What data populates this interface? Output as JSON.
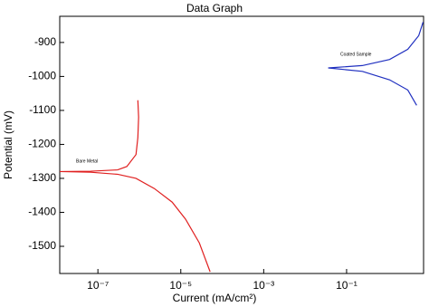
{
  "chart_data": {
    "type": "line",
    "title": "Data Graph",
    "x_label": "Current (mA/cm²)",
    "y_label": "Potential (mV)",
    "xscale": "log",
    "grid": false,
    "xlim": [
      1.2e-08,
      7.2
    ],
    "ylim": [
      -1580,
      -823
    ],
    "xticks": [
      {
        "value": 1e-07,
        "label": "10⁻⁷"
      },
      {
        "value": 1e-05,
        "label": "10⁻⁵"
      },
      {
        "value": 0.001,
        "label": "10⁻³"
      },
      {
        "value": 0.1,
        "label": "10⁻¹"
      }
    ],
    "yticks": [
      -900,
      -1000,
      -1100,
      -1200,
      -1300,
      -1400,
      -1500
    ],
    "series": [
      {
        "name": "Bare Metal",
        "color": "#e02020",
        "x": [
          9.2e-07,
          9.6e-07,
          9.2e-07,
          8.3e-07,
          5e-07,
          3e-07,
          6.7e-08,
          1.2e-08,
          6.7e-08,
          3e-07,
          8.3e-07,
          2.3e-06,
          6.2e-06,
          1.3e-05,
          2.8e-05,
          5.1e-05
        ],
        "values": [
          -1070,
          -1120,
          -1180,
          -1230,
          -1265,
          -1275,
          -1279,
          -1280,
          -1282,
          -1288,
          -1300,
          -1330,
          -1370,
          -1420,
          -1490,
          -1575
        ]
      },
      {
        "name": "Coated Sample",
        "color": "#2030c0",
        "x": [
          7.0,
          5.5,
          3.0,
          1.09,
          0.24,
          0.036,
          0.24,
          1.09,
          3.0,
          4.9
        ],
        "values": [
          -840,
          -880,
          -920,
          -950,
          -968,
          -975,
          -985,
          -1010,
          -1040,
          -1085
        ]
      }
    ]
  }
}
